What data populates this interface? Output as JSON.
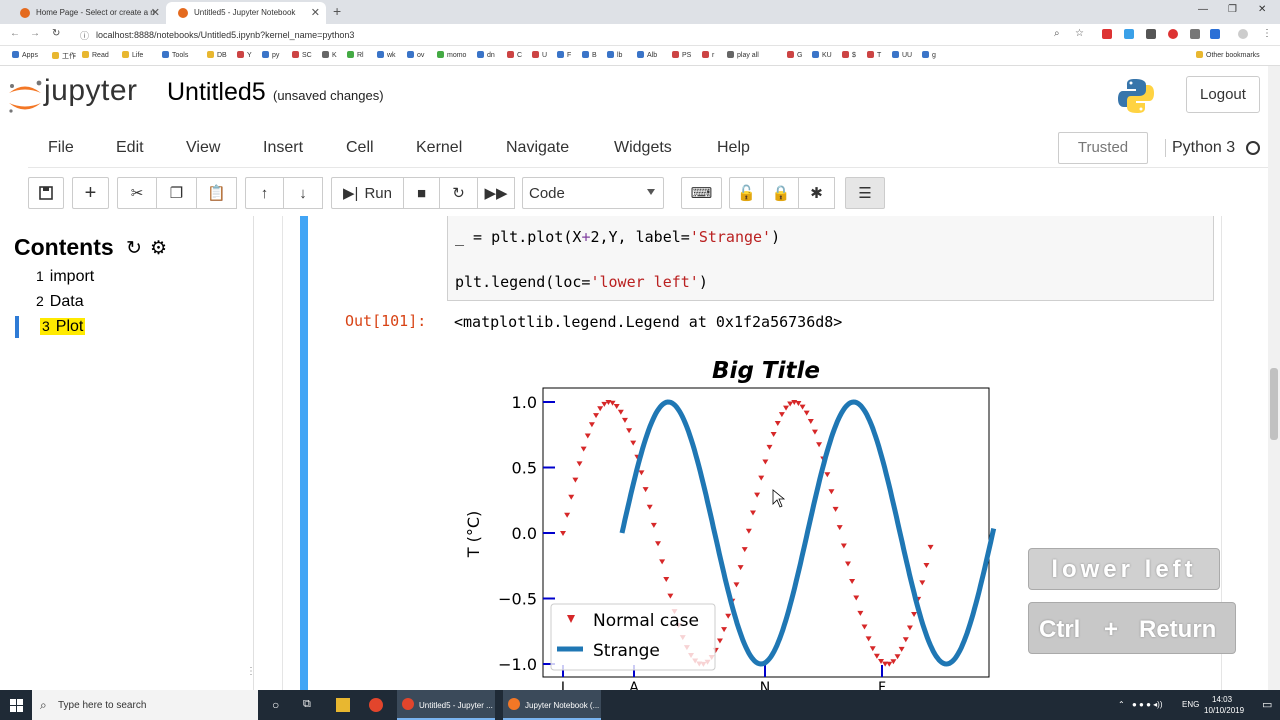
{
  "browser": {
    "tabs": [
      {
        "title": "Home Page - Select or create a n"
      },
      {
        "title": "Untitled5 - Jupyter Notebook"
      }
    ],
    "url": "localhost:8888/notebooks/Untitled5.ipynb?kernel_name=python3",
    "bookmarks": [
      "Apps",
      "工作",
      "Read",
      "Life",
      "Tools",
      "DB",
      "Y",
      "py",
      "SC",
      "K",
      "Rl",
      "wk",
      "ov",
      "momo",
      "dn",
      "C",
      "U",
      "F",
      "B",
      "lb",
      "Alb",
      "PS",
      "r",
      "play all",
      "G",
      "KU",
      "$",
      "T",
      "UU",
      "g"
    ],
    "other_bookmarks": "Other bookmarks"
  },
  "jupyter": {
    "logo_text": "jupyter",
    "notebook_title": "Untitled5",
    "save_status": "(unsaved changes)",
    "logout_label": "Logout",
    "menu": [
      "File",
      "Edit",
      "View",
      "Insert",
      "Cell",
      "Kernel",
      "Navigate",
      "Widgets",
      "Help"
    ],
    "trusted_label": "Trusted",
    "kernel_name": "Python 3",
    "run_label": "Run",
    "cell_type": "Code"
  },
  "toc": {
    "title": "Contents",
    "items": [
      {
        "num": "1",
        "label": "import"
      },
      {
        "num": "2",
        "label": "Data"
      },
      {
        "num": "3",
        "label": "Plot"
      }
    ]
  },
  "cell": {
    "code_line1_a": "_ = plt.plot(X",
    "code_line1_op": "+",
    "code_line1_b": "2,Y, label=",
    "code_line1_str": "'Strange'",
    "code_line1_c": ")",
    "code_line2_a": "plt.legend(loc=",
    "code_line2_str": "'lower left'",
    "code_line2_c": ")",
    "out_prompt": "Out[101]:",
    "out_text": "<matplotlib.legend.Legend at 0x1f2a56736d8>"
  },
  "chart_data": {
    "type": "line",
    "title": "Big Title",
    "ylabel": "T (°C)",
    "ylim": [
      -1.0,
      1.0
    ],
    "yticks": [
      "1.0",
      "0.5",
      "0.0",
      "−0.5",
      "−1.0"
    ],
    "xtick_labels": [
      "J",
      "A",
      "N",
      "F"
    ],
    "legend": {
      "loc": "lower left",
      "entries": [
        "Normal case",
        "Strange"
      ]
    },
    "series": [
      {
        "name": "Normal case",
        "style": "red triangle markers",
        "color": "#d62728",
        "function": "sin(x)",
        "x_range": [
          0,
          12.6
        ]
      },
      {
        "name": "Strange",
        "style": "thick blue line",
        "color": "#1f77b4",
        "function": "sin(x - 2)",
        "x_range": [
          2,
          14.6
        ]
      }
    ]
  },
  "overlay": {
    "key_hint": "lower left",
    "keys": [
      "Ctrl",
      "+",
      "Return"
    ]
  },
  "taskbar": {
    "search_placeholder": "Type here to search",
    "apps": [
      "Untitled5 - Jupyter ...",
      "Jupyter Notebook (..."
    ],
    "lang": "ENG",
    "time": "14:03",
    "date": "10/10/2019"
  }
}
